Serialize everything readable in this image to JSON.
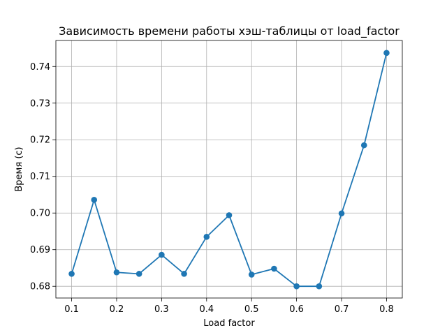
{
  "chart_data": {
    "type": "line",
    "title": "Зависимость времени работы хэш-таблицы от load_factor",
    "xlabel": "Load factor",
    "ylabel": "Время (с)",
    "xlim": [
      0.065,
      0.835
    ],
    "ylim": [
      0.6768,
      0.7471
    ],
    "x_ticks": [
      0.1,
      0.2,
      0.3,
      0.4,
      0.5,
      0.6,
      0.7,
      0.8
    ],
    "x_tick_labels": [
      "0.1",
      "0.2",
      "0.3",
      "0.4",
      "0.5",
      "0.6",
      "0.7",
      "0.8"
    ],
    "y_ticks": [
      0.68,
      0.69,
      0.7,
      0.71,
      0.72,
      0.73,
      0.74
    ],
    "y_tick_labels": [
      "0.68",
      "0.69",
      "0.70",
      "0.71",
      "0.72",
      "0.73",
      "0.74"
    ],
    "grid": true,
    "series": [
      {
        "color": "#1f77b4",
        "marker": "circle",
        "x": [
          0.1,
          0.15,
          0.2,
          0.25,
          0.3,
          0.35,
          0.4,
          0.45,
          0.5,
          0.55,
          0.6,
          0.65,
          0.7,
          0.75,
          0.8
        ],
        "y": [
          0.6834,
          0.7036,
          0.6838,
          0.6834,
          0.6886,
          0.6834,
          0.6935,
          0.6994,
          0.6832,
          0.6848,
          0.68,
          0.68,
          0.6999,
          0.7185,
          0.7437
        ]
      }
    ]
  }
}
